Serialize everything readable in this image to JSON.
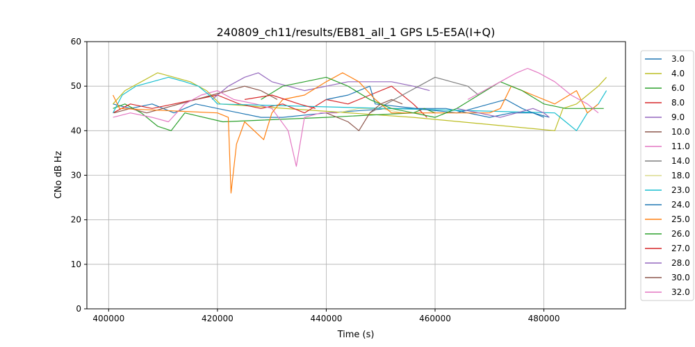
{
  "chart_data": {
    "type": "line",
    "title": "240809_ch11/results/EB81_all_1 GPS L5-E5A(I+Q)",
    "xlabel": "Time (s)",
    "ylabel": "CNo dB Hz",
    "xlim": [
      396000,
      495000
    ],
    "ylim": [
      0,
      60
    ],
    "xticks": [
      "400000",
      "420000",
      "440000",
      "460000",
      "480000"
    ],
    "yticks": [
      "0",
      "10",
      "20",
      "30",
      "40",
      "50",
      "60"
    ],
    "grid": true,
    "legend_position": "right, outside plot",
    "series": [
      {
        "name": "3.0",
        "color": "#1f77b4",
        "x": [
          400800,
          404000,
          408000,
          412000,
          416000,
          420000,
          424000,
          428000,
          432000,
          440000,
          452000,
          462000,
          466000,
          470000,
          474000,
          478000,
          481000
        ],
        "y": [
          46,
          45,
          46,
          44,
          46,
          45,
          44,
          43,
          43,
          44,
          45,
          45,
          44,
          43,
          44,
          44,
          43
        ]
      },
      {
        "name": "4.0",
        "color": "#bcbd22",
        "x": [
          400800,
          403000,
          406000,
          409000,
          412000,
          415000,
          418000,
          420500,
          456000,
          482000,
          483500,
          486000,
          488000,
          490000,
          491500
        ],
        "y": [
          46,
          49,
          51,
          53,
          52,
          51,
          49,
          46,
          43,
          40,
          45,
          46,
          48,
          50,
          52
        ]
      },
      {
        "name": "6.0",
        "color": "#2ca02c",
        "x": [
          400800,
          403000,
          406000,
          409000,
          411500,
          414000,
          421000,
          440000,
          456000,
          458000,
          460000
        ],
        "y": [
          45,
          46,
          44,
          41,
          40,
          44,
          42,
          43,
          44,
          45,
          44
        ]
      },
      {
        "name": "8.0",
        "color": "#d62728",
        "x": [
          400800,
          404000,
          408000,
          412000,
          416000,
          420000,
          424000,
          428000,
          432000,
          436000,
          440000,
          444000,
          448000,
          452000,
          456000,
          458500
        ],
        "y": [
          44,
          46,
          45,
          46,
          47,
          48,
          46,
          45,
          46,
          44,
          47,
          46,
          48,
          50,
          46,
          43
        ]
      },
      {
        "name": "9.0",
        "color": "#9467bd",
        "x": [
          419000,
          422000,
          425000,
          427500,
          430000,
          433000,
          436000,
          440000,
          444000,
          448000,
          452000,
          456000,
          459000
        ],
        "y": [
          47,
          50,
          52,
          53,
          51,
          50,
          49,
          50,
          51,
          51,
          51,
          50,
          49
        ]
      },
      {
        "name": "10.0",
        "color": "#8c564b",
        "x": [
          401000,
          404000,
          407000,
          410000,
          413000,
          416000,
          419000,
          422000,
          425000,
          428000,
          431000
        ],
        "y": [
          44,
          45,
          44,
          45,
          46,
          47,
          48,
          49,
          50,
          49,
          47
        ]
      },
      {
        "name": "11.0",
        "color": "#e377c2",
        "x": [
          400800,
          404000,
          408000,
          411000,
          414000,
          417000,
          420000,
          423000,
          427000,
          430000,
          433000,
          434500,
          436000,
          439000,
          442000
        ],
        "y": [
          43,
          44,
          43,
          42,
          46,
          48,
          49,
          47,
          46,
          45,
          40,
          32,
          43,
          44,
          44
        ]
      },
      {
        "name": "14.0",
        "color": "#7f7f7f",
        "x": [
          448000,
          451000,
          454000,
          457000,
          460000,
          463000,
          466000,
          468000
        ],
        "y": [
          44,
          46,
          48,
          50,
          52,
          51,
          50,
          48
        ]
      },
      {
        "name": "18.0",
        "color": "#dbdb8d",
        "x": [
          442000,
          446000,
          450000,
          454000
        ],
        "y": [
          44,
          45,
          45,
          44
        ]
      },
      {
        "name": "23.0",
        "color": "#17becf",
        "x": [
          400800,
          402500,
          405000,
          408000,
          411000,
          414000,
          416500,
          418500,
          420000,
          482000,
          484000,
          486000,
          488000,
          490000,
          491500
        ],
        "y": [
          44,
          48,
          50,
          51,
          52,
          51,
          50,
          48,
          46,
          44,
          42,
          40,
          44,
          46,
          49
        ]
      },
      {
        "name": "24.0",
        "color": "#1f77b4",
        "x": [
          440000,
          444000,
          446000,
          448000,
          449000,
          464000,
          467000,
          470000,
          473000,
          476000,
          478000,
          480000
        ],
        "y": [
          47,
          48,
          49,
          50,
          46,
          44,
          45,
          46,
          47,
          45,
          44,
          43
        ]
      },
      {
        "name": "25.0",
        "color": "#ff7f0e",
        "x": [
          400800,
          402000,
          420000,
          422000,
          422500,
          423500,
          425000,
          428500,
          430000,
          432000,
          436000,
          440000,
          443000,
          446000,
          449000,
          452000,
          470000,
          472000,
          474000,
          478000,
          482000,
          486000,
          488000,
          490000
        ],
        "y": [
          48,
          45,
          44,
          43,
          26,
          37,
          42,
          38,
          44,
          47,
          48,
          51,
          53,
          51,
          47,
          44,
          44,
          45,
          50,
          48,
          46,
          49,
          44,
          46
        ]
      },
      {
        "name": "26.0",
        "color": "#2ca02c",
        "x": [
          428000,
          432000,
          436000,
          440000,
          444000,
          448000,
          452000,
          456000,
          460000,
          464000,
          468000,
          472000,
          476000,
          480000,
          484000,
          488000,
          491000
        ],
        "y": [
          47,
          50,
          51,
          52,
          50,
          47,
          45,
          44,
          43,
          45,
          48,
          51,
          49,
          46,
          45,
          45,
          45
        ]
      },
      {
        "name": "27.0",
        "color": "#d62728",
        "x": [
          425000,
          430000,
          435000,
          438000
        ],
        "y": [
          47,
          48,
          46,
          45
        ]
      },
      {
        "name": "28.0",
        "color": "#9467bd",
        "x": [
          464000,
          468000,
          472000,
          475000,
          478000,
          480000,
          481000
        ],
        "y": [
          45,
          44,
          43,
          44,
          45,
          44,
          43
        ]
      },
      {
        "name": "30.0",
        "color": "#8c564b",
        "x": [
          440000,
          444000,
          446000,
          448000,
          450000,
          452000,
          454000
        ],
        "y": [
          44,
          42,
          40,
          44,
          46,
          47,
          46
        ]
      },
      {
        "name": "32.0",
        "color": "#e377c2",
        "x": [
          466000,
          469000,
          472000,
          475000,
          477000,
          479000,
          482000,
          485000,
          488000,
          490000
        ],
        "y": [
          47,
          49,
          51,
          53,
          54,
          53,
          51,
          48,
          46,
          44
        ]
      }
    ]
  }
}
